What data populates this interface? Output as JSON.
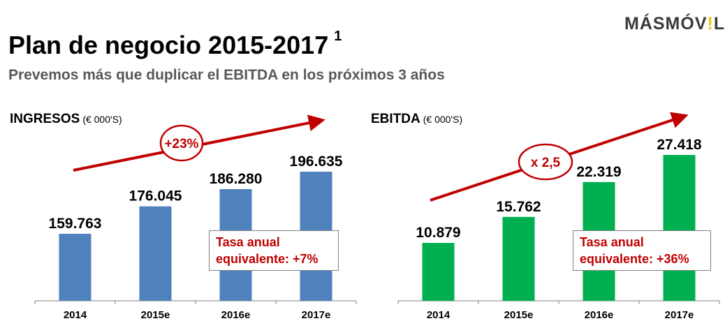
{
  "logo": {
    "text_before": "MÁSMÓV",
    "text_bang": "!",
    "text_after": "L"
  },
  "header": {
    "title": "Plan de negocio 2015-2017",
    "title_superscript": "1",
    "subtitle": "Prevemos más que duplicar el EBITDA en los próximos 3 años"
  },
  "colors": {
    "ingresos_bar": "#4f81bd",
    "ebitda_bar": "#00b050",
    "accent": "#c00000"
  },
  "chart_data": [
    {
      "type": "bar",
      "title": "INGRESOS",
      "unit_label": "(€ 000'S)",
      "categories": [
        "2014",
        "2015e",
        "2016e",
        "2017e"
      ],
      "values": [
        159763,
        176045,
        186280,
        196635
      ],
      "value_labels": [
        "159.763",
        "176.045",
        "186.280",
        "196.635"
      ],
      "ylim": [
        120000,
        210000
      ],
      "trend_label": "+23%",
      "note": {
        "line1": "Tasa anual",
        "line2": "equivalente: +7%"
      }
    },
    {
      "type": "bar",
      "title": "EBITDA",
      "unit_label": "(€ 000'S)",
      "categories": [
        "2014",
        "2015e",
        "2016e",
        "2017e"
      ],
      "values": [
        10879,
        15762,
        22319,
        27418
      ],
      "value_labels": [
        "10.879",
        "15.762",
        "22.319",
        "27.418"
      ],
      "ylim": [
        0,
        30000
      ],
      "trend_label": "x 2,5",
      "note": {
        "line1": "Tasa anual",
        "line2": "equivalente: +36%"
      }
    }
  ]
}
